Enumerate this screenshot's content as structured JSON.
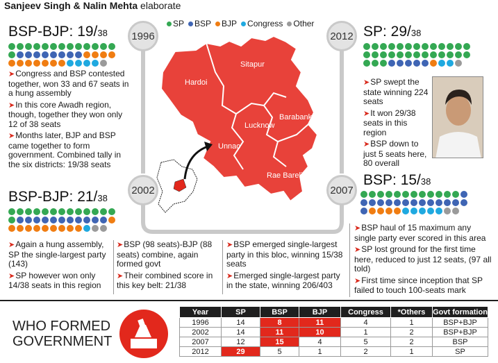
{
  "byline": {
    "authors": "Sanjeev Singh & Nalin Mehta",
    "verb": "elaborate"
  },
  "legend": [
    {
      "label": "SP",
      "color": "#34a853"
    },
    {
      "label": "BSP",
      "color": "#3f65b4"
    },
    {
      "label": "BJP",
      "color": "#f07d12"
    },
    {
      "label": "Congress",
      "color": "#1fa9e0"
    },
    {
      "label": "Other",
      "color": "#9a9a9a"
    }
  ],
  "colors": {
    "accent_red": "#e2281c",
    "map_red": "#e8423a",
    "ring_gray": "#c9c9c9"
  },
  "years": {
    "y1996": "1996",
    "y2002": "2002",
    "y2007": "2007",
    "y2012": "2012"
  },
  "map": {
    "districts": [
      "Sitapur",
      "Hardoi",
      "Lucknow",
      "Barabanki",
      "Unnao",
      "Rae Bareli"
    ]
  },
  "panel_1996": {
    "title": "BSP-BJP: 19/",
    "den": "38",
    "seats": {
      "sp": 14,
      "bsp": 8,
      "bjp": 11,
      "congress": 4,
      "other": 1
    },
    "bullets": [
      "Congress and BSP contested together, won 33 and 67 seats in a hung assembly",
      "In this core Awadh region, though, together they won only 12 of 38 seats",
      "Months later, BJP and BSP came together to form government. Combined tally in the six districts: 19/38 seats"
    ]
  },
  "panel_2002": {
    "title": "BSP-BJP: 21/",
    "den": "38",
    "seats": {
      "sp": 14,
      "bsp": 11,
      "bjp": 10,
      "congress": 1,
      "other": 2
    },
    "col1": [
      "Again a hung assembly, SP the single-largest party (143)",
      "SP however won only 14/38 seats in this region"
    ],
    "col2": [
      "BSP (98 seats)-BJP (88 seats) combine, again formed govt",
      "Their combined score in this key belt: 21/38"
    ],
    "col3": [
      "BSP emerged single-largest party in this bloc, winning 15/38 seats",
      "Emerged single-largest party in the state, winning 206/403"
    ]
  },
  "panel_2012": {
    "title": "SP: 29/",
    "den": "38",
    "seats": {
      "sp": 29,
      "bsp": 5,
      "bjp": 1,
      "congress": 2,
      "other": 1
    },
    "bullets": [
      "SP swept the state winning 224 seats",
      "It won 29/38 seats in this region",
      "BSP down to just 5 seats here, 80 overall"
    ]
  },
  "panel_2007": {
    "title": "BSP: 15/",
    "den": "38",
    "seats": {
      "sp": 12,
      "bsp": 15,
      "bjp": 4,
      "congress": 5,
      "other": 2
    },
    "bullets": [
      "BSP haul of 15 maximum any single party ever scored in this area",
      "SP lost ground for the first time here, reduced to just 12 seats, (97 all told)",
      "First time since inception that SP failed to touch 100-seats mark"
    ]
  },
  "who_formed": {
    "line1": "WHO FORMED",
    "line2": "GOVERNMENT"
  },
  "table": {
    "headers": [
      "Year",
      "SP",
      "BSP",
      "BJP",
      "Congress",
      "*Others",
      "Govt formation"
    ],
    "rows": [
      [
        "1996",
        "14",
        "8",
        "11",
        "4",
        "1",
        "BSP+BJP"
      ],
      [
        "2002",
        "14",
        "11",
        "10",
        "1",
        "2",
        "BSP+BJP"
      ],
      [
        "2007",
        "12",
        "15",
        "4",
        "5",
        "2",
        "BSP"
      ],
      [
        "2012",
        "29",
        "5",
        "1",
        "2",
        "1",
        "SP"
      ]
    ],
    "highlight": [
      [
        0,
        2
      ],
      [
        0,
        3
      ],
      [
        1,
        2
      ],
      [
        1,
        3
      ],
      [
        2,
        2
      ],
      [
        3,
        1
      ]
    ]
  }
}
